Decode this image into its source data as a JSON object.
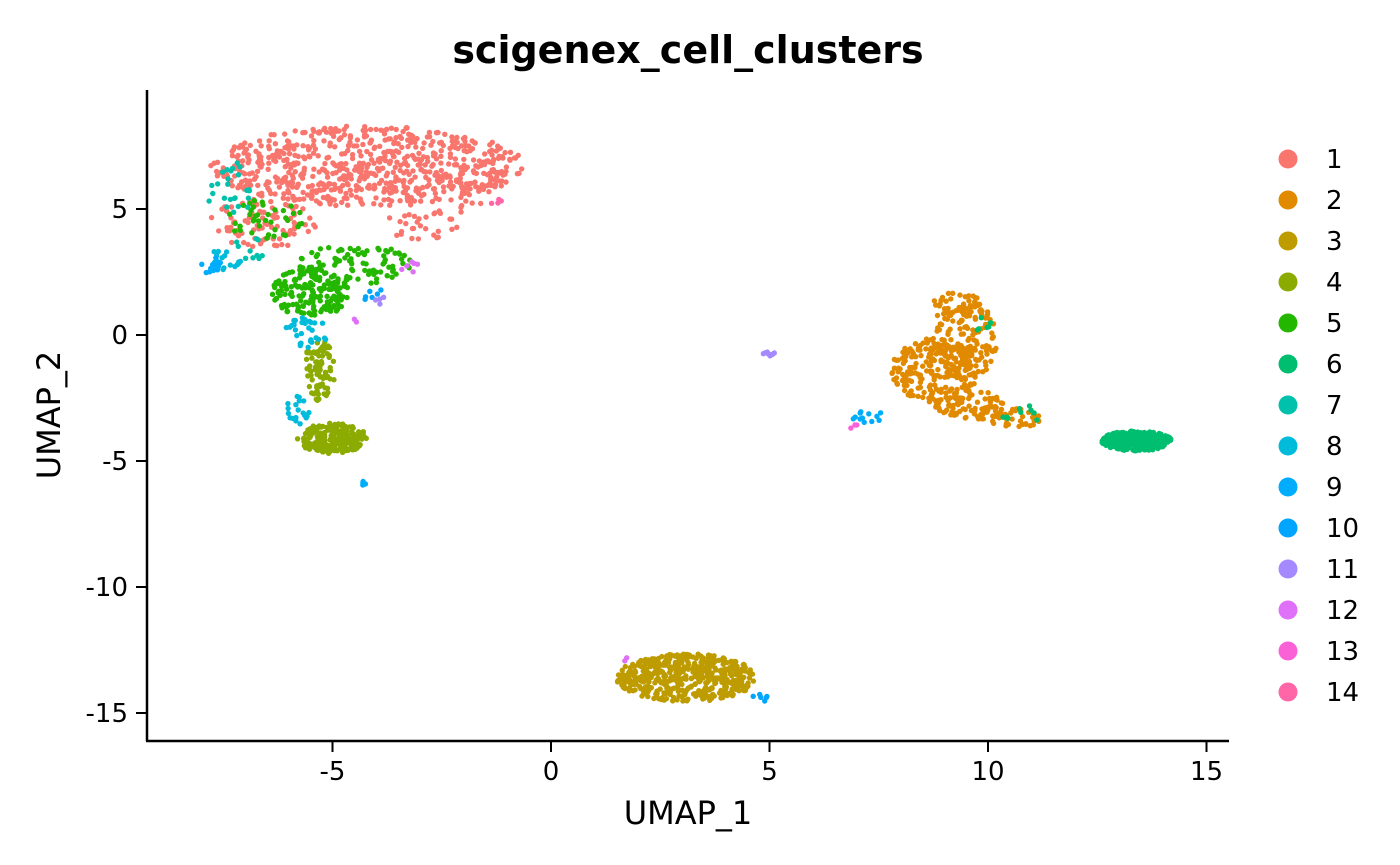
{
  "chart_data": {
    "type": "scatter",
    "title": "scigenex_cell_clusters",
    "xlabel": "UMAP_1",
    "ylabel": "UMAP_2",
    "xlim": [
      -9.2,
      15.4
    ],
    "ylim": [
      -16.2,
      9.7
    ],
    "x_ticks": [
      -5,
      0,
      5,
      10,
      15
    ],
    "x_tick_labels": [
      "-5",
      "0",
      "5",
      "10",
      "15"
    ],
    "y_ticks": [
      5,
      0,
      -5,
      -10,
      -15
    ],
    "y_tick_labels": [
      "5",
      "0",
      "-5",
      "-10",
      "-15"
    ],
    "grid": false,
    "legend_position": "right",
    "series": [
      {
        "name": "1",
        "color": "#F8766D",
        "regions": [
          {
            "cx": -4.2,
            "cy": 6.7,
            "rx": 3.6,
            "ry": 1.6,
            "n": 700
          },
          {
            "cx": -6.6,
            "cy": 4.4,
            "rx": 1.3,
            "ry": 1.0,
            "n": 90
          },
          {
            "cx": -3.0,
            "cy": 4.4,
            "rx": 0.9,
            "ry": 0.6,
            "n": 30
          },
          {
            "cx": -2.0,
            "cy": 5.6,
            "rx": 0.5,
            "ry": 0.8,
            "n": 20
          }
        ]
      },
      {
        "name": "2",
        "color": "#E18A00",
        "regions": [
          {
            "cx": 8.8,
            "cy": -1.4,
            "rx": 1.0,
            "ry": 1.3,
            "n": 230
          },
          {
            "cx": 9.5,
            "cy": -0.2,
            "rx": 0.7,
            "ry": 1.6,
            "n": 120
          },
          {
            "cx": 9.6,
            "cy": -2.8,
            "rx": 0.8,
            "ry": 0.6,
            "n": 90
          },
          {
            "cx": 10.6,
            "cy": -3.3,
            "rx": 0.6,
            "ry": 0.4,
            "n": 40
          },
          {
            "cx": 9.3,
            "cy": 1.1,
            "rx": 0.6,
            "ry": 0.6,
            "n": 50
          }
        ]
      },
      {
        "name": "3",
        "color": "#BE9C00",
        "regions": [
          {
            "cx": 3.1,
            "cy": -13.6,
            "rx": 1.6,
            "ry": 0.95,
            "n": 520
          }
        ]
      },
      {
        "name": "4",
        "color": "#8CAB00",
        "regions": [
          {
            "cx": -5.0,
            "cy": -4.1,
            "rx": 0.8,
            "ry": 0.6,
            "n": 220
          },
          {
            "cx": -5.3,
            "cy": -1.4,
            "rx": 0.35,
            "ry": 1.3,
            "n": 80
          }
        ]
      },
      {
        "name": "5",
        "color": "#24B700",
        "regions": [
          {
            "cx": -5.5,
            "cy": 1.7,
            "rx": 0.9,
            "ry": 1.0,
            "n": 170
          },
          {
            "cx": -4.5,
            "cy": 2.8,
            "rx": 1.3,
            "ry": 0.8,
            "n": 90
          },
          {
            "cx": -6.5,
            "cy": 4.6,
            "rx": 0.9,
            "ry": 0.9,
            "n": 40
          }
        ]
      },
      {
        "name": "6",
        "color": "#00BE70",
        "regions": [
          {
            "cx": 13.4,
            "cy": -4.2,
            "rx": 0.8,
            "ry": 0.4,
            "n": 320
          },
          {
            "cx": 9.9,
            "cy": 0.4,
            "rx": 0.2,
            "ry": 0.4,
            "n": 6
          },
          {
            "cx": 10.8,
            "cy": -3.1,
            "rx": 0.5,
            "ry": 0.4,
            "n": 10
          }
        ]
      },
      {
        "name": "7",
        "color": "#00C1AB",
        "regions": [
          {
            "cx": -7.3,
            "cy": 5.7,
            "rx": 0.6,
            "ry": 1.2,
            "n": 25
          },
          {
            "cx": -7.0,
            "cy": 3.4,
            "rx": 0.5,
            "ry": 0.5,
            "n": 10
          }
        ]
      },
      {
        "name": "8",
        "color": "#00BBDA",
        "regions": [
          {
            "cx": -5.6,
            "cy": 0.1,
            "rx": 0.5,
            "ry": 0.6,
            "n": 30
          },
          {
            "cx": -5.8,
            "cy": -3.0,
            "rx": 0.3,
            "ry": 0.6,
            "n": 20
          },
          {
            "cx": -7.5,
            "cy": 3.0,
            "rx": 0.4,
            "ry": 0.5,
            "n": 15
          }
        ]
      },
      {
        "name": "9",
        "color": "#00ACFC",
        "regions": [
          {
            "cx": 7.3,
            "cy": -3.3,
            "rx": 0.4,
            "ry": 0.3,
            "n": 12
          },
          {
            "cx": -4.3,
            "cy": -5.9,
            "rx": 0.1,
            "ry": 0.1,
            "n": 5
          },
          {
            "cx": -7.8,
            "cy": 2.8,
            "rx": 0.25,
            "ry": 0.4,
            "n": 15
          }
        ]
      },
      {
        "name": "10",
        "color": "#00A5FF",
        "regions": [
          {
            "cx": 4.8,
            "cy": -14.4,
            "rx": 0.2,
            "ry": 0.2,
            "n": 6
          },
          {
            "cx": -4.1,
            "cy": 1.6,
            "rx": 0.3,
            "ry": 0.3,
            "n": 6
          }
        ]
      },
      {
        "name": "11",
        "color": "#A58AFF",
        "regions": [
          {
            "cx": 5.0,
            "cy": -0.75,
            "rx": 0.15,
            "ry": 0.08,
            "n": 8
          },
          {
            "cx": -4.0,
            "cy": 1.4,
            "rx": 0.2,
            "ry": 0.2,
            "n": 4
          }
        ]
      },
      {
        "name": "12",
        "color": "#DF70F8",
        "regions": [
          {
            "cx": -3.2,
            "cy": 2.8,
            "rx": 0.3,
            "ry": 0.3,
            "n": 6
          },
          {
            "cx": 1.7,
            "cy": -12.9,
            "rx": 0.1,
            "ry": 0.1,
            "n": 2
          },
          {
            "cx": -4.5,
            "cy": 0.6,
            "rx": 0.1,
            "ry": 0.1,
            "n": 2
          }
        ]
      },
      {
        "name": "13",
        "color": "#FB61D7",
        "regions": [
          {
            "cx": 6.9,
            "cy": -3.6,
            "rx": 0.15,
            "ry": 0.1,
            "n": 3
          }
        ]
      },
      {
        "name": "14",
        "color": "#FF66A8",
        "regions": [
          {
            "cx": -1.3,
            "cy": 5.3,
            "rx": 0.3,
            "ry": 0.15,
            "n": 4
          }
        ]
      }
    ]
  }
}
